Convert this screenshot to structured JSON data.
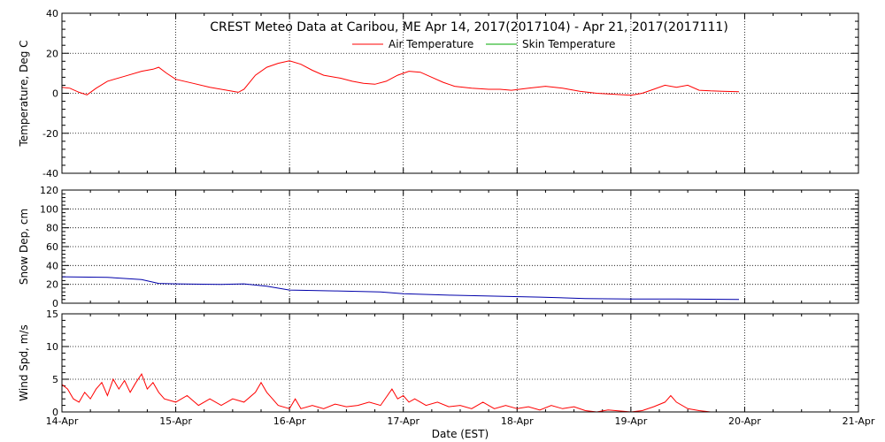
{
  "chart_data": {
    "title": "CREST Meteo Data at Caribou, ME   Apr 14, 2017(2017104) - Apr 21, 2017(2017111)",
    "xlabel": "Date (EST)",
    "x_ticks": [
      "14-Apr",
      "15-Apr",
      "16-Apr",
      "17-Apr",
      "18-Apr",
      "19-Apr",
      "20-Apr",
      "21-Apr"
    ],
    "xlim_days": [
      0,
      7
    ],
    "panels": [
      {
        "type": "line",
        "ylabel": "Temperature, Deg C",
        "ylim": [
          -40,
          40
        ],
        "yticks": [
          -40,
          -20,
          0,
          20,
          40
        ],
        "grid": true,
        "legend": [
          {
            "label": "Air Temperature",
            "color": "#ff0000"
          },
          {
            "label": "Skin Temperature",
            "color": "#00aa00"
          }
        ],
        "series": [
          {
            "name": "Air Temperature",
            "color": "#ff0000",
            "points": [
              [
                0.0,
                3.0
              ],
              [
                0.07,
                2.5
              ],
              [
                0.15,
                0.5
              ],
              [
                0.22,
                -0.8
              ],
              [
                0.3,
                2.5
              ],
              [
                0.4,
                6.0
              ],
              [
                0.55,
                8.5
              ],
              [
                0.7,
                11.0
              ],
              [
                0.8,
                12.0
              ],
              [
                0.85,
                13.0
              ],
              [
                0.92,
                10.0
              ],
              [
                1.0,
                7.0
              ],
              [
                1.15,
                5.0
              ],
              [
                1.3,
                3.0
              ],
              [
                1.45,
                1.5
              ],
              [
                1.55,
                0.5
              ],
              [
                1.6,
                2.0
              ],
              [
                1.7,
                9.0
              ],
              [
                1.8,
                13.0
              ],
              [
                1.9,
                15.0
              ],
              [
                2.0,
                16.2
              ],
              [
                2.1,
                14.5
              ],
              [
                2.2,
                11.5
              ],
              [
                2.3,
                9.0
              ],
              [
                2.45,
                7.5
              ],
              [
                2.55,
                6.0
              ],
              [
                2.65,
                5.0
              ],
              [
                2.75,
                4.5
              ],
              [
                2.85,
                6.0
              ],
              [
                2.95,
                9.0
              ],
              [
                3.05,
                11.0
              ],
              [
                3.15,
                10.5
              ],
              [
                3.25,
                8.0
              ],
              [
                3.35,
                5.5
              ],
              [
                3.45,
                3.5
              ],
              [
                3.6,
                2.5
              ],
              [
                3.75,
                2.0
              ],
              [
                3.85,
                2.0
              ],
              [
                3.95,
                1.5
              ],
              [
                4.1,
                2.5
              ],
              [
                4.25,
                3.5
              ],
              [
                4.4,
                2.5
              ],
              [
                4.55,
                1.0
              ],
              [
                4.7,
                0.0
              ],
              [
                4.85,
                -0.5
              ],
              [
                5.0,
                -1.0
              ],
              [
                5.1,
                0.0
              ],
              [
                5.2,
                2.0
              ],
              [
                5.3,
                4.0
              ],
              [
                5.4,
                3.0
              ],
              [
                5.5,
                4.0
              ],
              [
                5.6,
                1.5
              ],
              [
                5.7,
                1.2
              ],
              [
                5.8,
                1.0
              ],
              [
                5.95,
                0.8
              ]
            ]
          },
          {
            "name": "Skin Temperature",
            "color": "#00aa00",
            "points": []
          }
        ]
      },
      {
        "type": "line",
        "ylabel": "Snow Dep, cm",
        "ylim": [
          0,
          120
        ],
        "yticks": [
          0,
          20,
          40,
          60,
          80,
          100,
          120
        ],
        "grid": true,
        "series": [
          {
            "name": "Snow Depth",
            "color": "#0000aa",
            "points": [
              [
                0.0,
                28.0
              ],
              [
                0.4,
                27.5
              ],
              [
                0.7,
                25.0
              ],
              [
                0.85,
                21.0
              ],
              [
                1.0,
                20.5
              ],
              [
                1.4,
                20.0
              ],
              [
                1.6,
                20.5
              ],
              [
                1.8,
                18.0
              ],
              [
                2.0,
                14.0
              ],
              [
                2.4,
                13.0
              ],
              [
                2.8,
                12.0
              ],
              [
                3.0,
                10.0
              ],
              [
                3.4,
                8.5
              ],
              [
                3.8,
                7.5
              ],
              [
                4.2,
                6.5
              ],
              [
                4.6,
                5.0
              ],
              [
                5.0,
                4.5
              ],
              [
                5.4,
                4.5
              ],
              [
                5.95,
                4.0
              ]
            ]
          }
        ]
      },
      {
        "type": "line",
        "ylabel": "Wind Spd, m/s",
        "ylim": [
          0,
          15
        ],
        "yticks": [
          0,
          5,
          10,
          15
        ],
        "grid": true,
        "series": [
          {
            "name": "Wind Speed",
            "color": "#ff0000",
            "points": [
              [
                0.0,
                4.2
              ],
              [
                0.05,
                3.5
              ],
              [
                0.1,
                2.0
              ],
              [
                0.15,
                1.5
              ],
              [
                0.2,
                3.0
              ],
              [
                0.25,
                2.0
              ],
              [
                0.3,
                3.5
              ],
              [
                0.35,
                4.5
              ],
              [
                0.4,
                2.5
              ],
              [
                0.45,
                5.0
              ],
              [
                0.5,
                3.5
              ],
              [
                0.55,
                4.8
              ],
              [
                0.6,
                3.0
              ],
              [
                0.65,
                4.5
              ],
              [
                0.7,
                5.8
              ],
              [
                0.75,
                3.5
              ],
              [
                0.8,
                4.5
              ],
              [
                0.85,
                3.0
              ],
              [
                0.9,
                2.0
              ],
              [
                1.0,
                1.5
              ],
              [
                1.1,
                2.5
              ],
              [
                1.2,
                1.0
              ],
              [
                1.3,
                2.0
              ],
              [
                1.4,
                1.0
              ],
              [
                1.5,
                2.0
              ],
              [
                1.6,
                1.5
              ],
              [
                1.7,
                3.0
              ],
              [
                1.75,
                4.5
              ],
              [
                1.8,
                3.0
              ],
              [
                1.85,
                2.0
              ],
              [
                1.9,
                1.0
              ],
              [
                2.0,
                0.5
              ],
              [
                2.05,
                2.0
              ],
              [
                2.1,
                0.5
              ],
              [
                2.2,
                1.0
              ],
              [
                2.3,
                0.5
              ],
              [
                2.4,
                1.2
              ],
              [
                2.5,
                0.8
              ],
              [
                2.6,
                1.0
              ],
              [
                2.7,
                1.5
              ],
              [
                2.8,
                1.0
              ],
              [
                2.9,
                3.5
              ],
              [
                2.95,
                2.0
              ],
              [
                3.0,
                2.5
              ],
              [
                3.05,
                1.5
              ],
              [
                3.1,
                2.0
              ],
              [
                3.2,
                1.0
              ],
              [
                3.3,
                1.5
              ],
              [
                3.4,
                0.8
              ],
              [
                3.5,
                1.0
              ],
              [
                3.6,
                0.5
              ],
              [
                3.7,
                1.5
              ],
              [
                3.8,
                0.5
              ],
              [
                3.9,
                1.0
              ],
              [
                4.0,
                0.5
              ],
              [
                4.1,
                0.8
              ],
              [
                4.2,
                0.3
              ],
              [
                4.3,
                1.0
              ],
              [
                4.4,
                0.5
              ],
              [
                4.5,
                0.8
              ],
              [
                4.6,
                0.2
              ],
              [
                4.7,
                0.0
              ],
              [
                4.8,
                0.3
              ],
              [
                5.0,
                0.0
              ],
              [
                5.1,
                0.2
              ],
              [
                5.2,
                0.8
              ],
              [
                5.3,
                1.5
              ],
              [
                5.35,
                2.5
              ],
              [
                5.4,
                1.5
              ],
              [
                5.5,
                0.5
              ],
              [
                5.6,
                0.2
              ],
              [
                5.7,
                0.0
              ],
              [
                5.95,
                0.0
              ]
            ]
          }
        ]
      }
    ]
  }
}
